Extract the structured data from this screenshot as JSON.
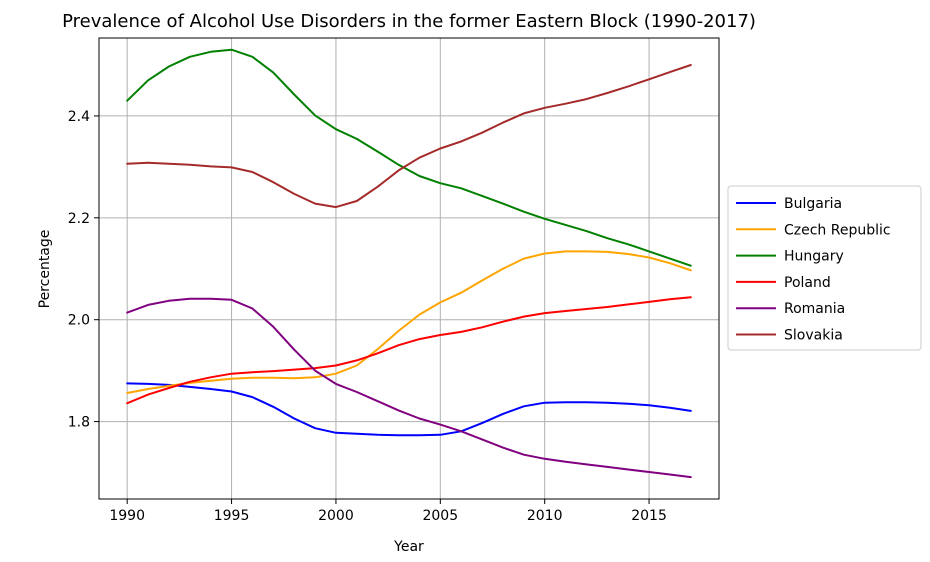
{
  "chart_data": {
    "type": "line",
    "title": "Prevalence of Alcohol Use Disorders in the former Eastern Block (1990-2017)",
    "xlabel": "Year",
    "ylabel": "Percentage",
    "xlim": [
      1988.65,
      2018.35
    ],
    "ylim": [
      1.648,
      2.553
    ],
    "x_ticks": [
      1990,
      1995,
      2000,
      2005,
      2010,
      2015
    ],
    "y_ticks": [
      1.8,
      2.0,
      2.2,
      2.4
    ],
    "y_tick_labels": [
      "1.8",
      "2.0",
      "2.2",
      "2.4"
    ],
    "grid": true,
    "legend_position": "outside right",
    "x": [
      1990,
      1991,
      1992,
      1993,
      1994,
      1995,
      1996,
      1997,
      1998,
      1999,
      2000,
      2001,
      2002,
      2003,
      2004,
      2005,
      2006,
      2007,
      2008,
      2009,
      2010,
      2011,
      2012,
      2013,
      2014,
      2015,
      2016,
      2017
    ],
    "series": [
      {
        "name": "Bulgaria",
        "color": "#0000ff",
        "values": [
          1.875,
          1.874,
          1.872,
          1.868,
          1.864,
          1.859,
          1.848,
          1.829,
          1.806,
          1.787,
          1.778,
          1.776,
          1.774,
          1.773,
          1.773,
          1.774,
          1.781,
          1.797,
          1.815,
          1.83,
          1.837,
          1.838,
          1.838,
          1.837,
          1.835,
          1.832,
          1.827,
          1.821
        ]
      },
      {
        "name": "Czech Republic",
        "color": "#ffa500",
        "values": [
          1.856,
          1.864,
          1.87,
          1.876,
          1.88,
          1.884,
          1.886,
          1.886,
          1.885,
          1.887,
          1.894,
          1.91,
          1.942,
          1.978,
          2.01,
          2.034,
          2.053,
          2.077,
          2.1,
          2.12,
          2.13,
          2.134,
          2.134,
          2.133,
          2.129,
          2.122,
          2.111,
          2.097
        ]
      },
      {
        "name": "Hungary",
        "color": "#008000",
        "values": [
          2.43,
          2.47,
          2.497,
          2.516,
          2.526,
          2.53,
          2.516,
          2.485,
          2.442,
          2.401,
          2.374,
          2.355,
          2.33,
          2.304,
          2.282,
          2.268,
          2.258,
          2.243,
          2.228,
          2.212,
          2.198,
          2.186,
          2.174,
          2.16,
          2.148,
          2.134,
          2.12,
          2.106
        ]
      },
      {
        "name": "Poland",
        "color": "#ff0000",
        "values": [
          1.836,
          1.853,
          1.866,
          1.878,
          1.887,
          1.894,
          1.897,
          1.899,
          1.902,
          1.905,
          1.91,
          1.92,
          1.934,
          1.95,
          1.962,
          1.97,
          1.976,
          1.985,
          1.996,
          2.006,
          2.013,
          2.017,
          2.021,
          2.025,
          2.03,
          2.035,
          2.04,
          2.044
        ]
      },
      {
        "name": "Romania",
        "color": "#800080",
        "values": [
          2.014,
          2.029,
          2.037,
          2.041,
          2.041,
          2.039,
          2.022,
          1.986,
          1.941,
          1.9,
          1.874,
          1.858,
          1.84,
          1.822,
          1.806,
          1.794,
          1.781,
          1.765,
          1.749,
          1.735,
          1.727,
          1.721,
          1.716,
          1.711,
          1.706,
          1.701,
          1.696,
          1.691
        ]
      },
      {
        "name": "Slovakia",
        "color": "#a52a2a",
        "values": [
          2.306,
          2.308,
          2.306,
          2.304,
          2.301,
          2.299,
          2.29,
          2.27,
          2.247,
          2.228,
          2.221,
          2.233,
          2.261,
          2.293,
          2.318,
          2.336,
          2.35,
          2.367,
          2.387,
          2.405,
          2.416,
          2.424,
          2.433,
          2.445,
          2.458,
          2.472,
          2.486,
          2.5
        ]
      }
    ]
  }
}
